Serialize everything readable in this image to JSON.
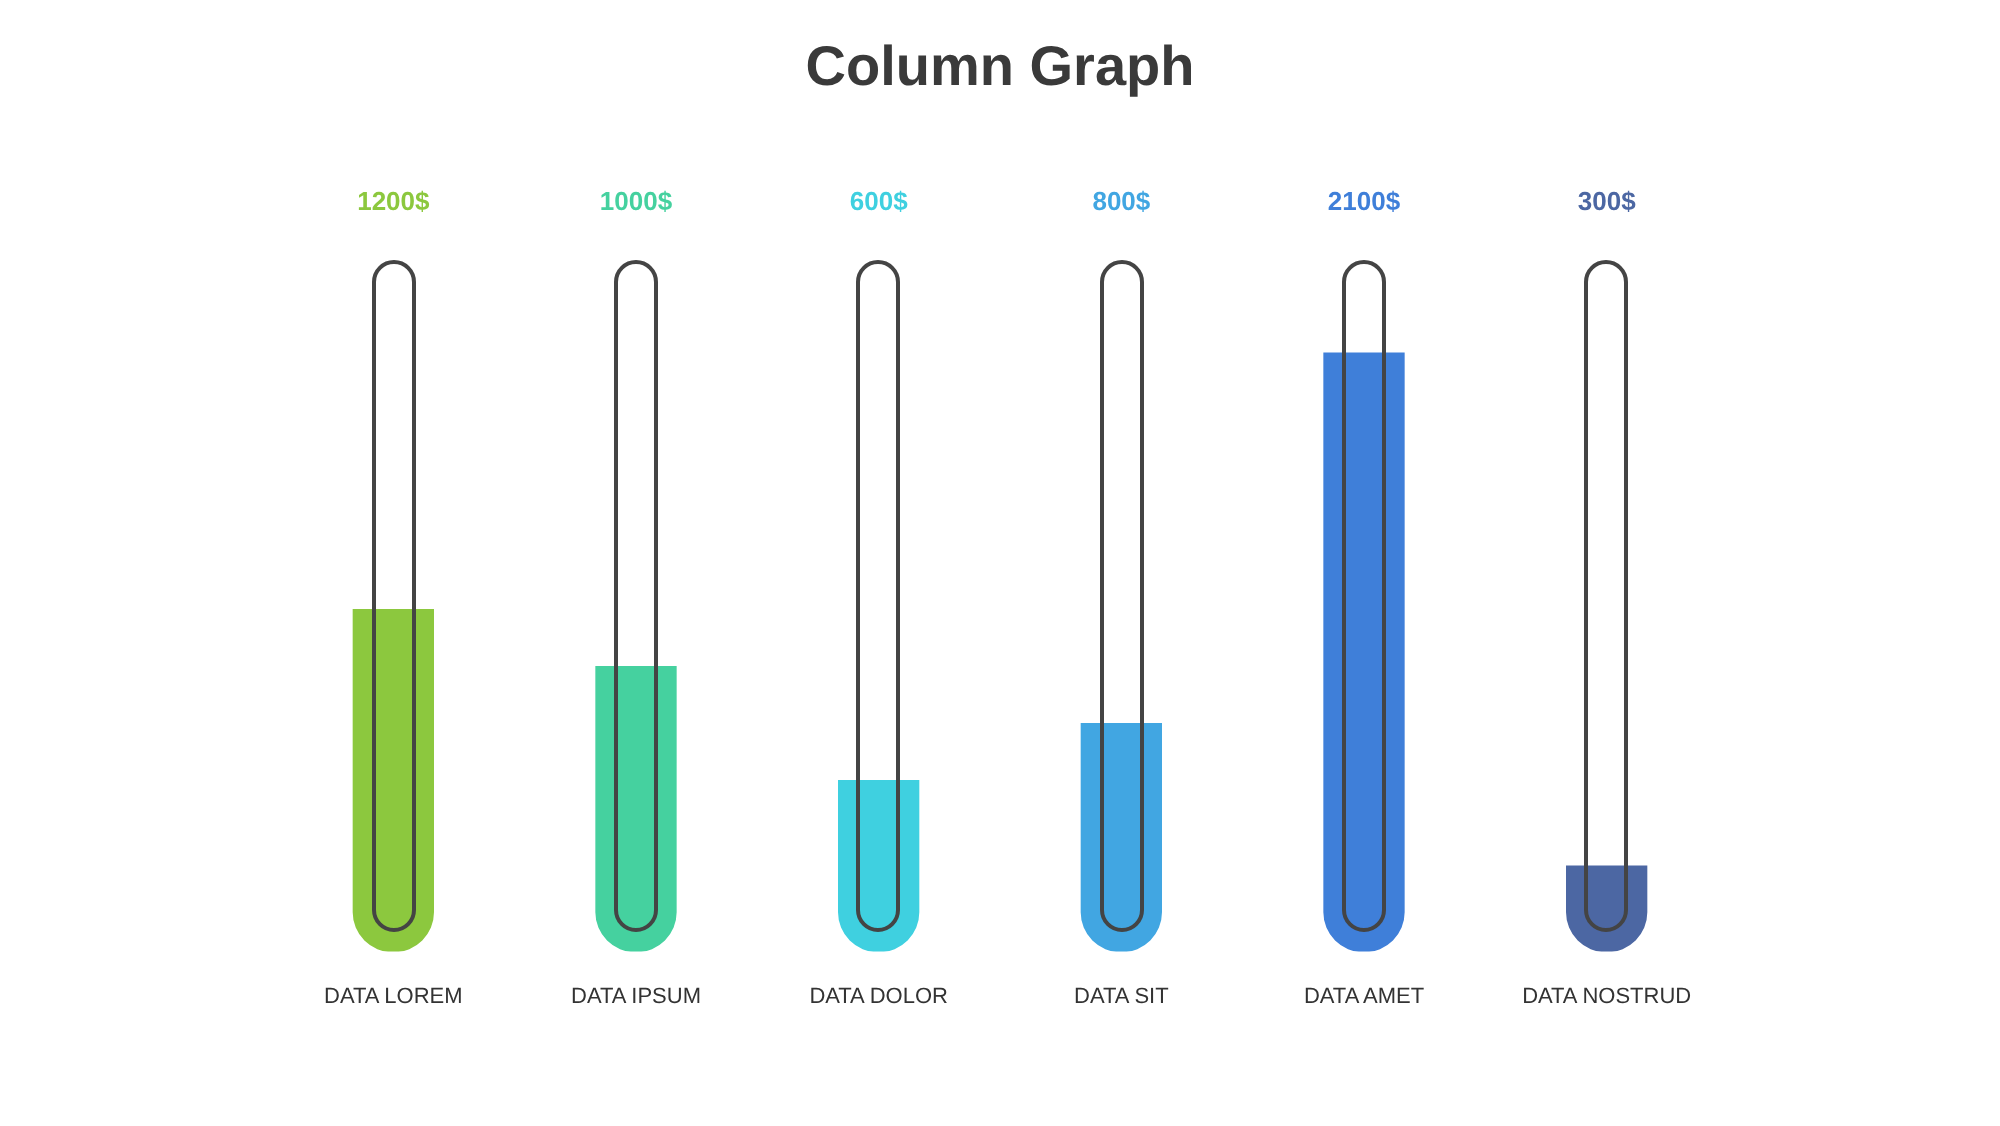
{
  "chart_data": {
    "type": "bar",
    "title": "Column Graph",
    "categories": [
      "DATA LOREM",
      "DATA IPSUM",
      "DATA DOLOR",
      "DATA SIT",
      "DATA AMET",
      "DATA NOSTRUD"
    ],
    "values": [
      1200,
      1000,
      600,
      800,
      2100,
      300
    ],
    "colors": [
      "#8cc83e",
      "#45d19f",
      "#3fd0e0",
      "#41a6e2",
      "#3f7fd9",
      "#4c67a3"
    ],
    "value_labels": [
      "1200$",
      "1000$",
      "600$",
      "800$",
      "2100$",
      "300$"
    ]
  }
}
